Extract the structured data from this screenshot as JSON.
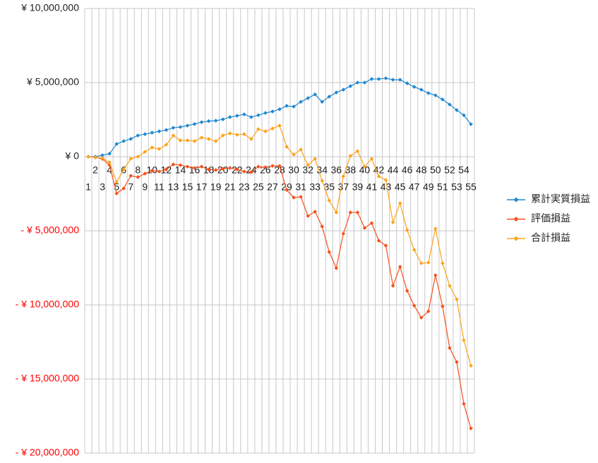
{
  "chart_data": {
    "type": "line",
    "categories": [
      "1",
      "2",
      "3",
      "4",
      "5",
      "6",
      "7",
      "8",
      "9",
      "10",
      "11",
      "12",
      "13",
      "14",
      "15",
      "16",
      "17",
      "18",
      "19",
      "20",
      "21",
      "22",
      "23",
      "24",
      "25",
      "26",
      "27",
      "28",
      "29",
      "30",
      "31",
      "32",
      "33",
      "34",
      "35",
      "36",
      "37",
      "38",
      "39",
      "40",
      "41",
      "42",
      "43",
      "44",
      "45",
      "46",
      "47",
      "48",
      "49",
      "50",
      "51",
      "52",
      "53",
      "54",
      "55"
    ],
    "series": [
      {
        "name": "累計実質損益",
        "color": "#1f88cf",
        "values": [
          0,
          0,
          100000,
          200000,
          860000,
          1050000,
          1200000,
          1430000,
          1520000,
          1620000,
          1710000,
          1800000,
          1950000,
          2000000,
          2100000,
          2200000,
          2330000,
          2400000,
          2430000,
          2520000,
          2670000,
          2760000,
          2860000,
          2670000,
          2800000,
          2950000,
          3050000,
          3200000,
          3430000,
          3380000,
          3700000,
          3950000,
          4200000,
          3700000,
          4050000,
          4330000,
          4520000,
          4760000,
          5000000,
          5000000,
          5240000,
          5240000,
          5290000,
          5190000,
          5190000,
          4950000,
          4710000,
          4520000,
          4290000,
          4140000,
          3860000,
          3520000,
          3140000,
          2800000,
          2190000
        ]
      },
      {
        "name": "評価損益",
        "color": "#f5511e",
        "values": [
          0,
          -50000,
          -150000,
          -570000,
          -2480000,
          -2140000,
          -1290000,
          -1380000,
          -1140000,
          -950000,
          -1000000,
          -860000,
          -520000,
          -570000,
          -670000,
          -760000,
          -670000,
          -860000,
          -900000,
          -810000,
          -760000,
          -860000,
          -1000000,
          -1050000,
          -670000,
          -710000,
          -620000,
          -620000,
          -2240000,
          -2760000,
          -2710000,
          -4000000,
          -3710000,
          -4710000,
          -6430000,
          -7520000,
          -5190000,
          -3760000,
          -3760000,
          -4810000,
          -4480000,
          -5670000,
          -6000000,
          -8710000,
          -7430000,
          -9050000,
          -10050000,
          -10860000,
          -10430000,
          -8000000,
          -10100000,
          -12900000,
          -13860000,
          -16670000,
          -18330000
        ]
      },
      {
        "name": "合計損益",
        "color": "#fca31c",
        "values": [
          0,
          -50000,
          -100000,
          -380000,
          -1710000,
          -860000,
          -140000,
          0,
          330000,
          620000,
          520000,
          810000,
          1430000,
          1100000,
          1100000,
          1050000,
          1290000,
          1190000,
          1050000,
          1430000,
          1570000,
          1480000,
          1520000,
          1190000,
          1860000,
          1710000,
          1900000,
          2100000,
          670000,
          140000,
          480000,
          -570000,
          -140000,
          -1620000,
          -2950000,
          -3760000,
          -1330000,
          50000,
          380000,
          -670000,
          -140000,
          -1330000,
          -1570000,
          -4430000,
          -3140000,
          -4950000,
          -6290000,
          -7190000,
          -7140000,
          -4860000,
          -7190000,
          -8710000,
          -9620000,
          -12380000,
          -14100000
        ]
      }
    ],
    "ylim": [
      -20000000,
      10000000
    ],
    "yticks": [
      {
        "value": -20000000,
        "label": "- ¥ 20,000,000"
      },
      {
        "value": -15000000,
        "label": "- ¥ 15,000,000"
      },
      {
        "value": -10000000,
        "label": "- ¥ 10,000,000"
      },
      {
        "value": -5000000,
        "label": "- ¥ 5,000,000"
      },
      {
        "value": 0,
        "label": "¥ 0"
      },
      {
        "value": 5000000,
        "label": "¥ 5,000,000"
      },
      {
        "value": 10000000,
        "label": "¥ 10,000,000"
      }
    ],
    "negative_tick_color": "#ff0000",
    "grid": true,
    "legend": "right"
  }
}
